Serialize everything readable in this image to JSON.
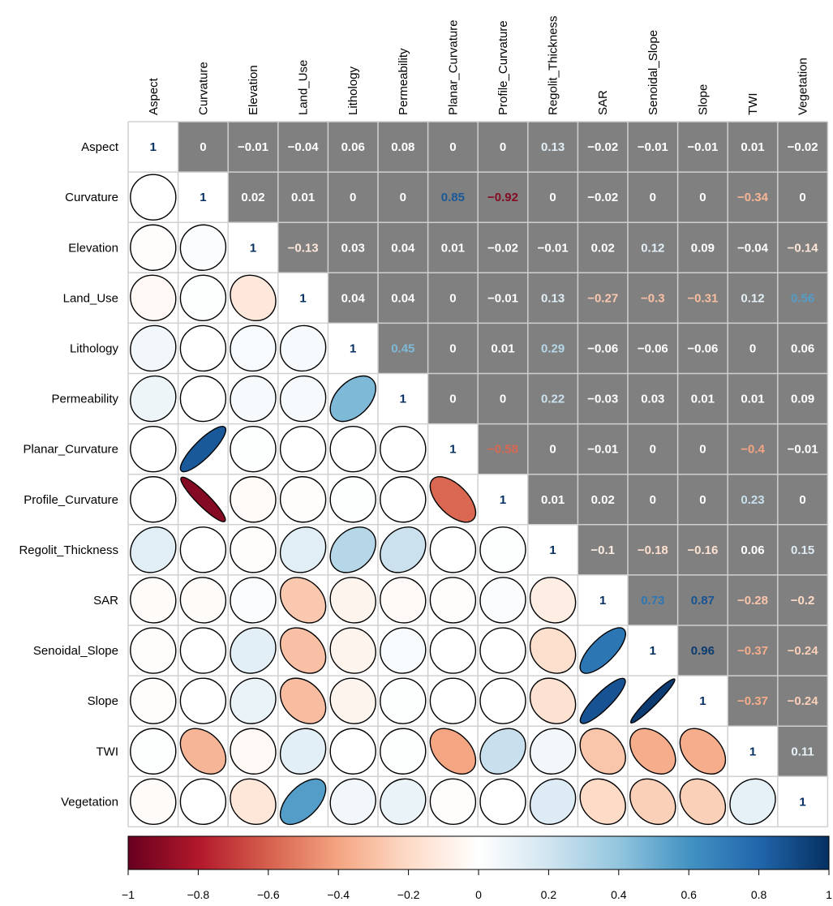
{
  "chart_data": {
    "type": "heatmap",
    "variables": [
      "Aspect",
      "Curvature",
      "Elevation",
      "Land_Use",
      "Lithology",
      "Permeability",
      "Planar_Curvature",
      "Profile_Curvature",
      "Regolit_Thickness",
      "SAR",
      "Senoidal_Slope",
      "Slope",
      "TWI",
      "Vegetation"
    ],
    "matrix": [
      [
        1,
        0,
        -0.01,
        -0.04,
        0.06,
        0.08,
        0,
        0,
        0.13,
        -0.02,
        -0.01,
        -0.01,
        0.01,
        -0.02
      ],
      [
        0,
        1,
        0.02,
        0.01,
        0,
        0,
        0.85,
        -0.92,
        0,
        -0.02,
        0,
        0,
        -0.34,
        0
      ],
      [
        -0.01,
        0.02,
        1,
        -0.13,
        0.03,
        0.04,
        0.01,
        -0.02,
        -0.01,
        0.02,
        0.12,
        0.09,
        -0.04,
        -0.14
      ],
      [
        -0.04,
        0.01,
        -0.13,
        1,
        0.04,
        0.04,
        0,
        -0.01,
        0.13,
        -0.27,
        -0.3,
        -0.31,
        0.12,
        0.56
      ],
      [
        0.06,
        0,
        0.03,
        0.04,
        1,
        0.45,
        0,
        0.01,
        0.29,
        -0.06,
        -0.06,
        -0.06,
        0,
        0.06
      ],
      [
        0.08,
        0,
        0.04,
        0.04,
        0.45,
        1,
        0,
        0,
        0.22,
        -0.03,
        0.03,
        0.01,
        0.01,
        0.09
      ],
      [
        0,
        0.85,
        0.01,
        0,
        0,
        0,
        1,
        -0.58,
        0,
        -0.01,
        0,
        0,
        -0.4,
        -0.01
      ],
      [
        0,
        -0.92,
        -0.02,
        -0.01,
        0.01,
        0,
        -0.58,
        1,
        0.01,
        0.02,
        0,
        0,
        0.23,
        0
      ],
      [
        0.13,
        0,
        -0.01,
        0.13,
        0.29,
        0.22,
        0,
        0.01,
        1,
        -0.1,
        -0.18,
        -0.16,
        0.06,
        0.15
      ],
      [
        -0.02,
        -0.02,
        0.02,
        -0.27,
        -0.06,
        -0.03,
        -0.01,
        0.02,
        -0.1,
        1,
        0.73,
        0.87,
        -0.28,
        -0.2
      ],
      [
        -0.01,
        0,
        0.12,
        -0.3,
        -0.06,
        0.03,
        0,
        0,
        -0.18,
        0.73,
        1,
        0.96,
        -0.37,
        -0.24
      ],
      [
        -0.01,
        0,
        0.09,
        -0.31,
        -0.06,
        0.01,
        0,
        0,
        -0.16,
        0.87,
        0.96,
        1,
        -0.37,
        -0.24
      ],
      [
        0.01,
        -0.34,
        -0.04,
        0.12,
        0,
        0.01,
        -0.4,
        0.23,
        0.06,
        -0.28,
        -0.37,
        -0.37,
        1,
        0.11
      ],
      [
        -0.02,
        0,
        -0.14,
        0.56,
        0.06,
        0.09,
        -0.01,
        0,
        0.15,
        -0.2,
        -0.24,
        -0.24,
        0.11,
        1
      ]
    ],
    "upper_triangle": "numbers",
    "lower_triangle": "ellipses",
    "diagonal": "numbers",
    "colorbar": {
      "ticks": [
        "−1",
        "−0.8",
        "−0.6",
        "−0.4",
        "−0.2",
        "0",
        "0.2",
        "0.4",
        "0.6",
        "0.8",
        "1"
      ],
      "range": [
        -1,
        1
      ],
      "colors": [
        "#67001f",
        "#b2182b",
        "#d6604d",
        "#f4a582",
        "#fddbc7",
        "#ffffff",
        "#d1e5f0",
        "#92c5de",
        "#4393c3",
        "#2166ac",
        "#053061"
      ]
    },
    "panel_background": "#808080",
    "grid_color": "#d0d0d0"
  }
}
